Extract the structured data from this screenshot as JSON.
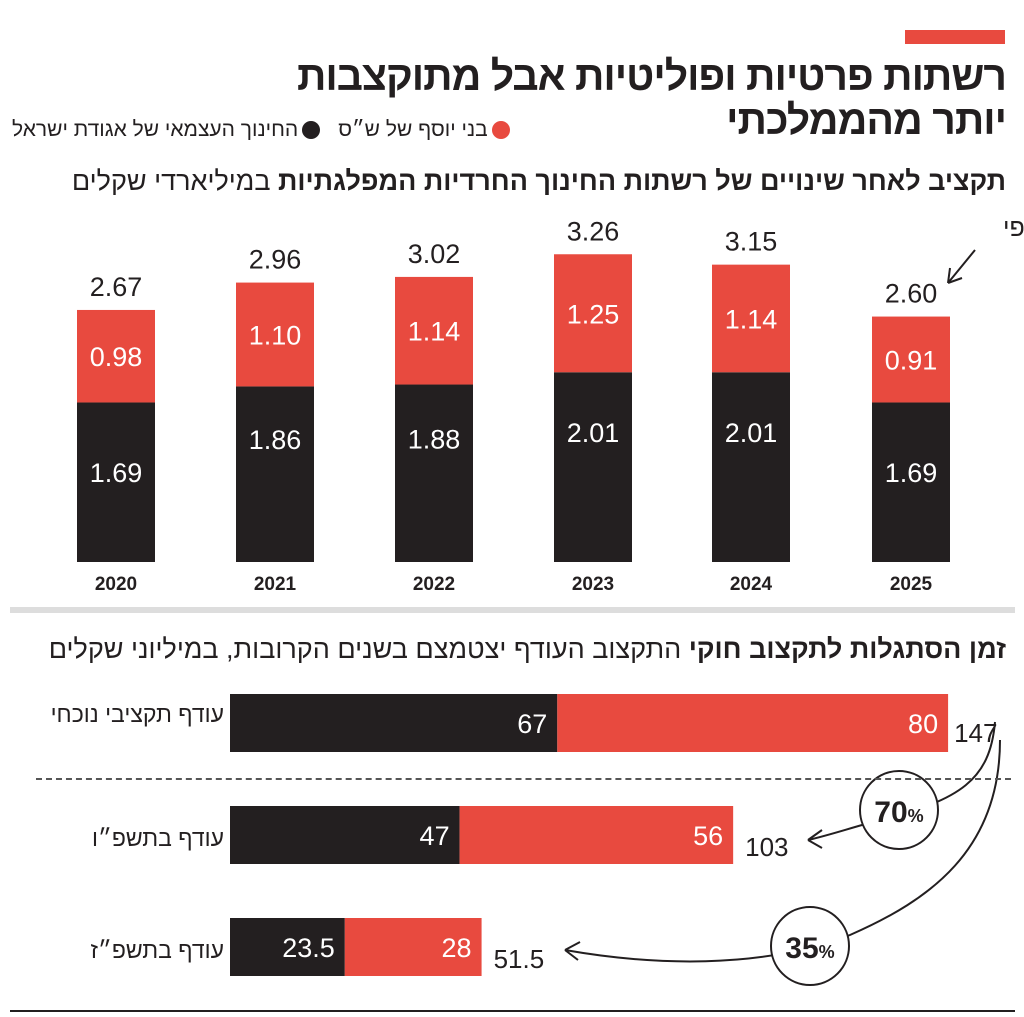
{
  "title": "רשתות פרטיות ופוליטיות אבל מתוקצבות יותר מהממלכתי",
  "legend": [
    {
      "label": "בני יוסף של ש״ס",
      "color": "#e84a3f"
    },
    {
      "label": "החינוך העצמאי של אגודת ישראל",
      "color": "#231f20"
    }
  ],
  "colors": {
    "red": "#e84a3f",
    "black": "#231f20"
  },
  "chart_data": [
    {
      "type": "bar",
      "stacked": true,
      "title_bold": "תקציב לאחר שינויים של רשתות החינוך החרדיות המפלגתיות",
      "title_rest": "במיליארדי שקלים",
      "categories": [
        "2020",
        "2021",
        "2022",
        "2023",
        "2024",
        "2025"
      ],
      "series": [
        {
          "name": "החינוך העצמאי של אגודת ישראל",
          "values": [
            1.69,
            1.86,
            1.88,
            2.01,
            2.01,
            1.69
          ]
        },
        {
          "name": "בני יוסף של ש״ס",
          "values": [
            0.98,
            1.1,
            1.14,
            1.25,
            1.14,
            0.91
          ]
        }
      ],
      "totals": [
        "2.67",
        "2.96",
        "3.02",
        "3.26",
        "3.15",
        "2.60"
      ],
      "annotation": "לא סופי",
      "ylim": [
        0,
        3.5
      ]
    },
    {
      "type": "bar",
      "orientation": "horizontal",
      "stacked": true,
      "title_bold": "זמן הסתגלות לתקצוב חוקי",
      "title_rest": "התקצוב העודף יצטמצם בשנים הקרובות, במיליוני שקלים",
      "categories": [
        "עודף תקציבי נוכחי",
        "עודף  בתשפ״ו",
        "עודף  בתשפ״ז"
      ],
      "series": [
        {
          "name": "החינוך העצמאי של אגודת ישראל",
          "values": [
            67,
            47,
            23.5
          ],
          "labels": [
            "67",
            "47",
            "23.5"
          ]
        },
        {
          "name": "בני יוסף של ש״ס",
          "values": [
            80,
            56,
            28
          ],
          "labels": [
            "80",
            "56",
            "28"
          ]
        }
      ],
      "totals": [
        "147",
        "103",
        "51.5"
      ],
      "annotations": [
        {
          "value": "70",
          "unit": "%"
        },
        {
          "value": "35",
          "unit": "%"
        }
      ]
    }
  ]
}
